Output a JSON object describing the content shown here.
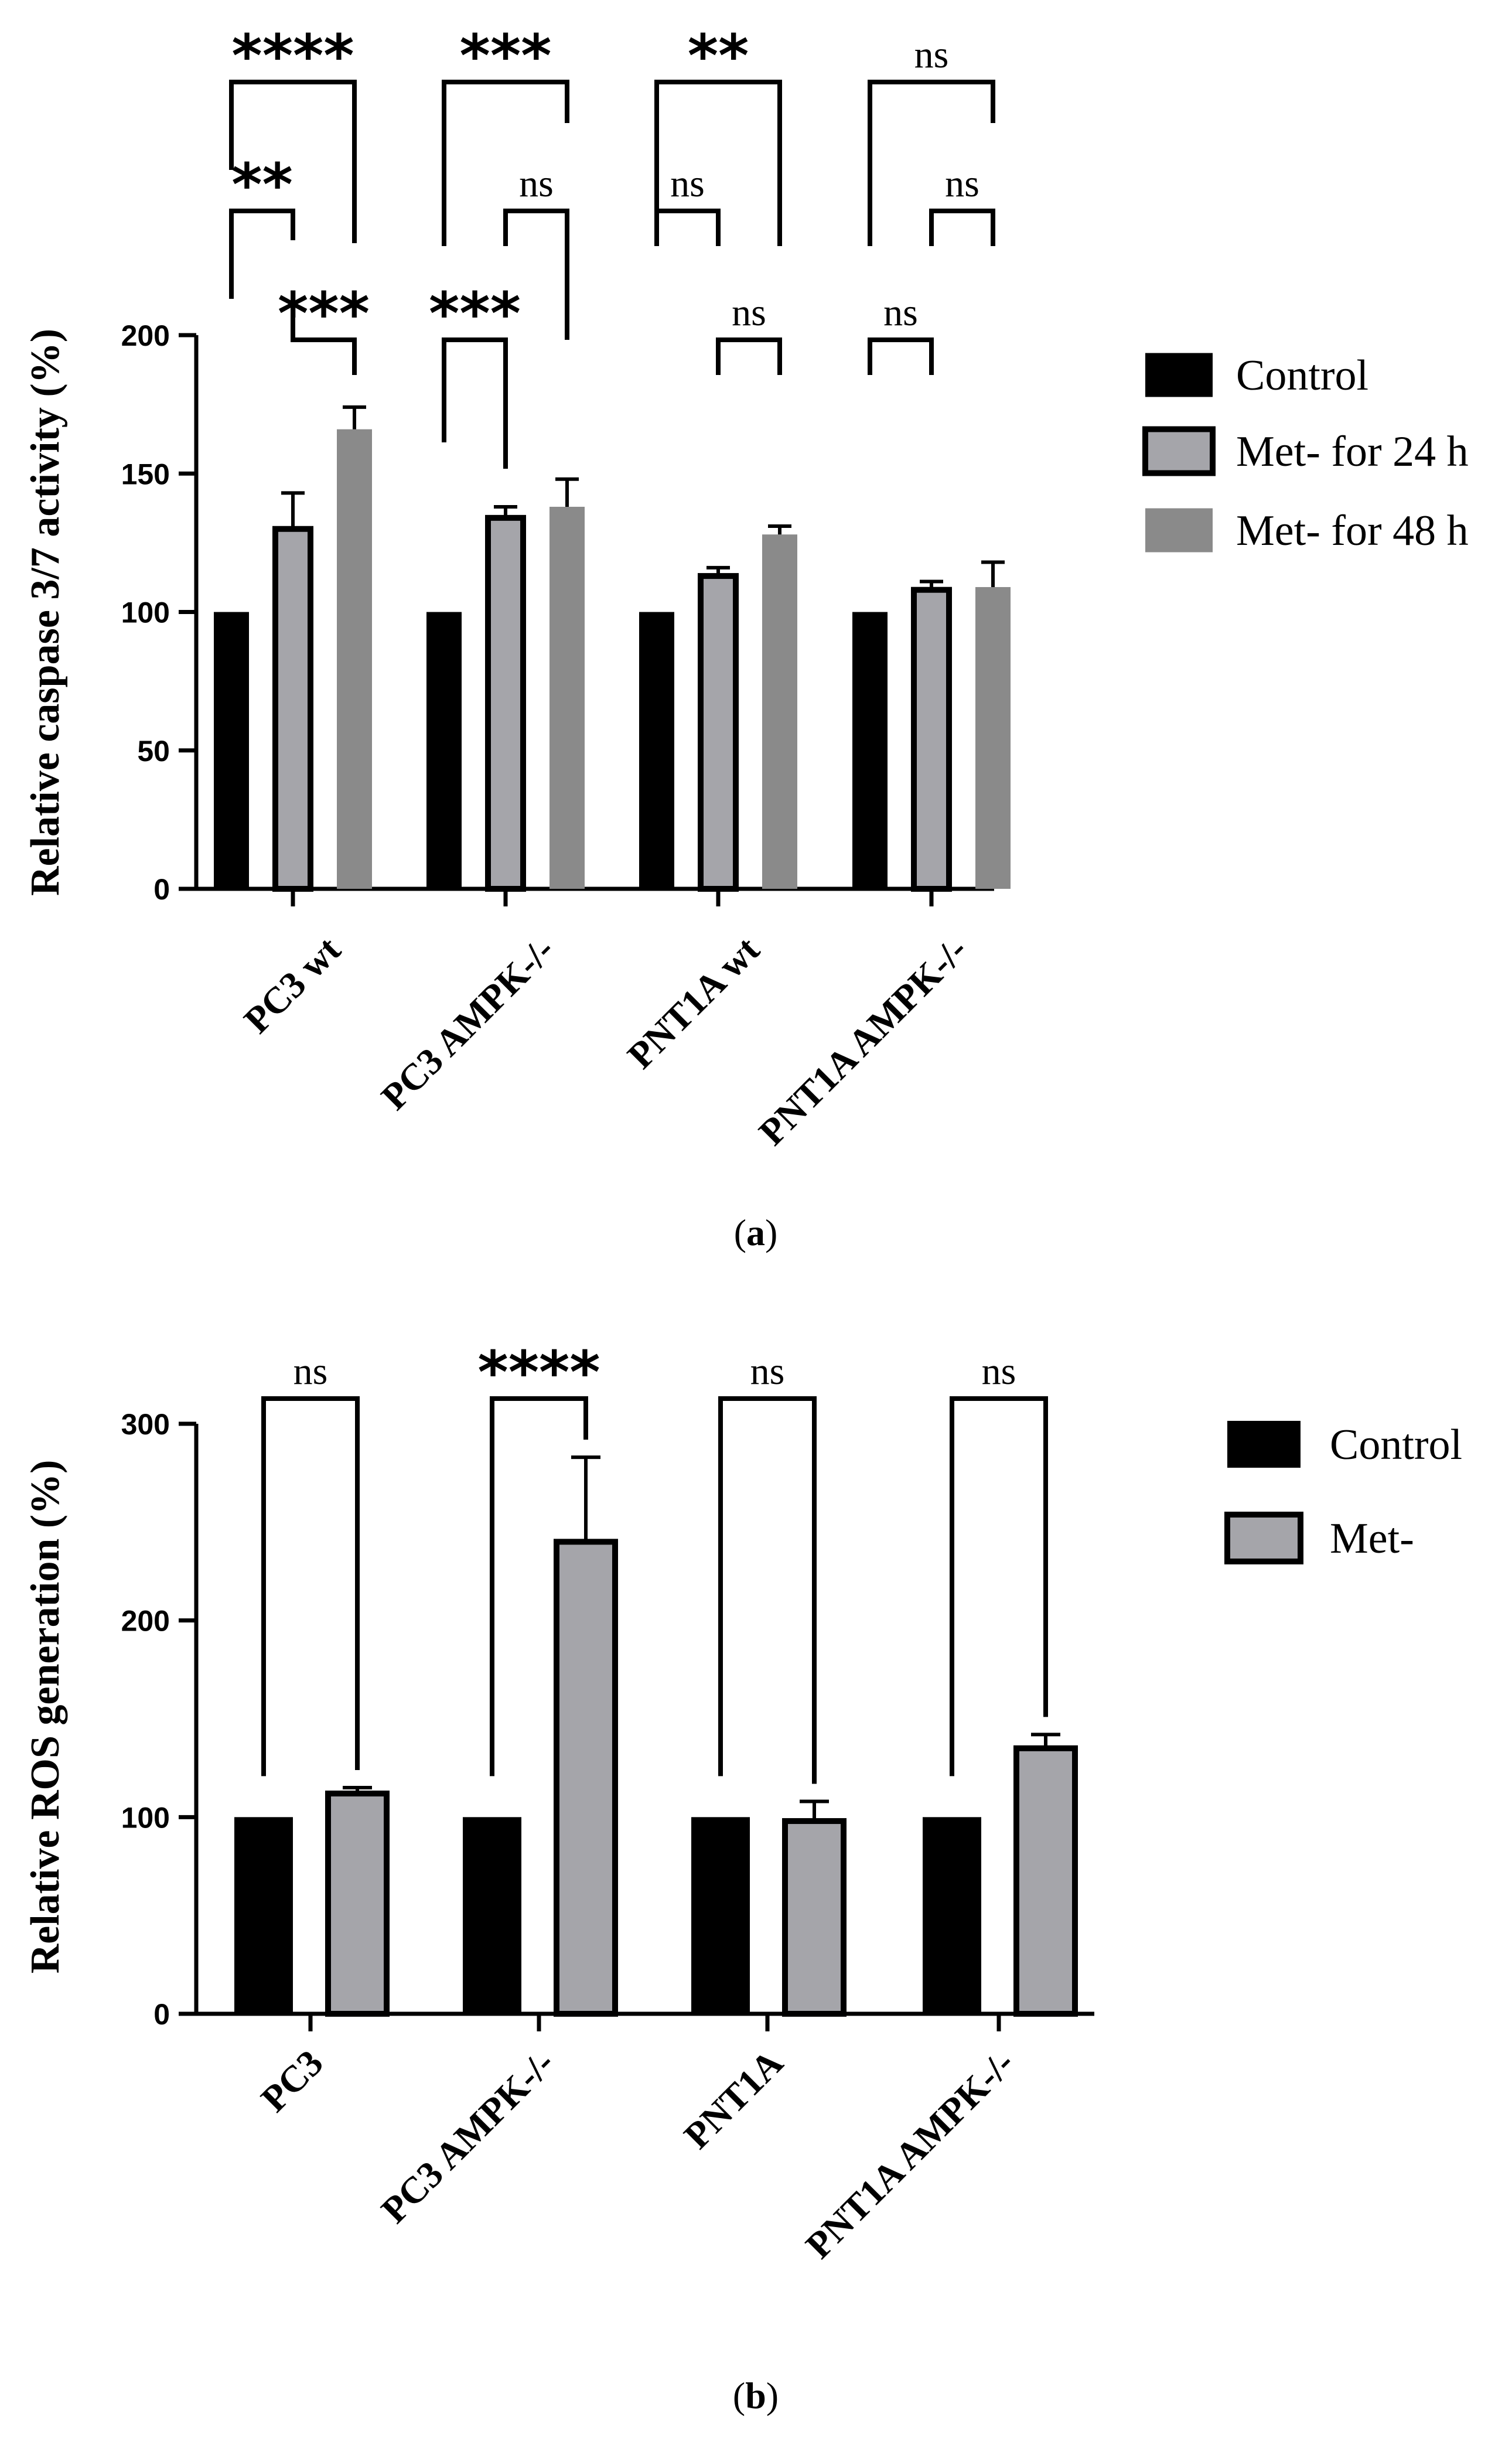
{
  "chart_data": [
    {
      "type": "bar",
      "panel": "a",
      "caption_letter": "a",
      "ylabel": "Relative caspase 3/7 activity  (%)",
      "ylim": [
        0,
        200
      ],
      "yticks": [
        0,
        50,
        100,
        150,
        200
      ],
      "categories": [
        "PC3 wt",
        "PC3 AMPK-/-",
        "PNT1A wt",
        "PNT1A AMPK-/-"
      ],
      "series": [
        {
          "name": "Control",
          "color": "#000000",
          "values": [
            100,
            100,
            100,
            100
          ],
          "errors": [
            0,
            0,
            0,
            0
          ]
        },
        {
          "name": "Met- for 24 h",
          "color": "#a5a5aa",
          "values": [
            130,
            134,
            113,
            108
          ],
          "errors": [
            13,
            4,
            3,
            3
          ]
        },
        {
          "name": "Met- for 48 h",
          "color": "#8a8a8a",
          "values": [
            166,
            138,
            128,
            109
          ],
          "errors": [
            8,
            10,
            3,
            9
          ]
        }
      ],
      "comparisons": [
        {
          "group": 0,
          "from": 0,
          "to": 2,
          "label": "****"
        },
        {
          "group": 0,
          "from": 0,
          "to": 1,
          "label": "**"
        },
        {
          "group": 0,
          "from": 1,
          "to": 2,
          "label": "***"
        },
        {
          "group": 1,
          "from": 0,
          "to": 2,
          "label": "***"
        },
        {
          "group": 1,
          "from": 1,
          "to": 2,
          "label": "ns"
        },
        {
          "group": 1,
          "from": 0,
          "to": 1,
          "label": "***"
        },
        {
          "group": 2,
          "from": 0,
          "to": 2,
          "label": "**"
        },
        {
          "group": 2,
          "from": 0,
          "to": 1,
          "label": "ns"
        },
        {
          "group": 2,
          "from": 1,
          "to": 2,
          "label": "ns"
        },
        {
          "group": 3,
          "from": 0,
          "to": 2,
          "label": "ns"
        },
        {
          "group": 3,
          "from": 1,
          "to": 2,
          "label": "ns"
        },
        {
          "group": 3,
          "from": 0,
          "to": 1,
          "label": "ns"
        }
      ]
    },
    {
      "type": "bar",
      "panel": "b",
      "caption_letter": "b",
      "ylabel": "Relative ROS generation (%)",
      "ylim": [
        0,
        300
      ],
      "yticks": [
        0,
        100,
        200,
        300
      ],
      "categories": [
        "PC3",
        "PC3 AMPK-/-",
        "PNT1A",
        "PNT1A AMPK-/-"
      ],
      "series": [
        {
          "name": "Control",
          "color": "#000000",
          "values": [
            100,
            100,
            100,
            100
          ],
          "errors": [
            0,
            0,
            0,
            0
          ]
        },
        {
          "name": "Met-",
          "color": "#a5a5aa",
          "values": [
            112,
            240,
            98,
            135
          ],
          "errors": [
            3,
            43,
            10,
            7
          ]
        }
      ],
      "comparisons": [
        {
          "group": 0,
          "from": 0,
          "to": 1,
          "label": "ns"
        },
        {
          "group": 1,
          "from": 0,
          "to": 1,
          "label": "****"
        },
        {
          "group": 2,
          "from": 0,
          "to": 1,
          "label": "ns"
        },
        {
          "group": 3,
          "from": 0,
          "to": 1,
          "label": "ns"
        }
      ]
    }
  ]
}
